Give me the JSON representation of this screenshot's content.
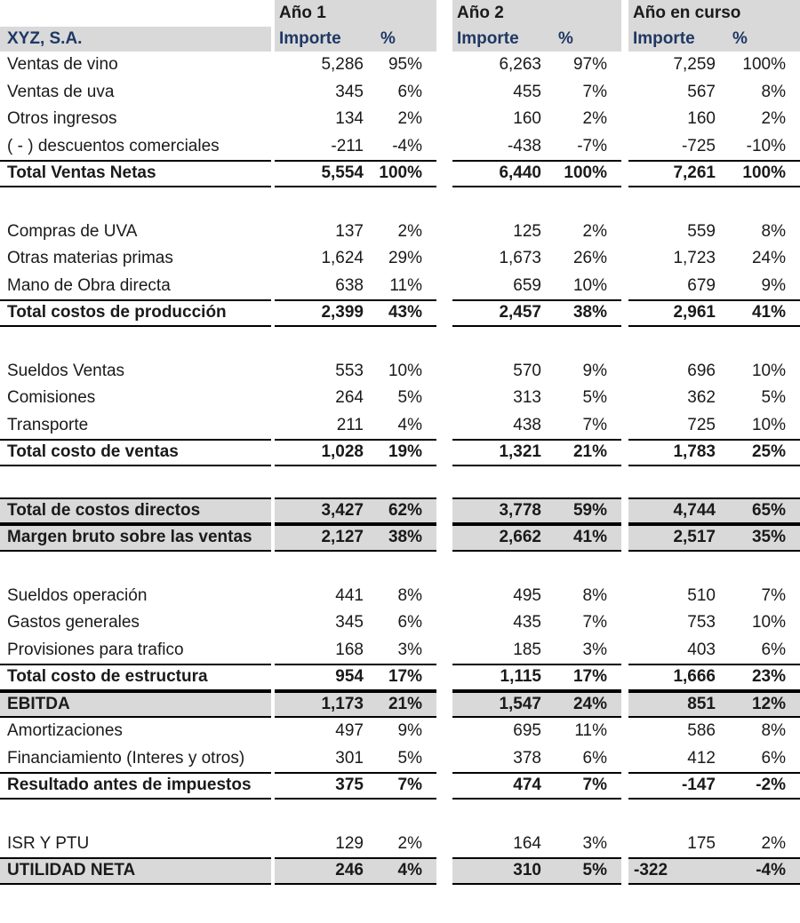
{
  "header": {
    "company": "XYZ, S.A.",
    "col_groups": [
      {
        "title": "Año 1"
      },
      {
        "title": "Año 2"
      },
      {
        "title": "Año en curso"
      }
    ],
    "importe": "Importe",
    "pct": "%"
  },
  "colors": {
    "header_text": "#1F3864",
    "band_bg": "#D9D9D9",
    "border": "#000000",
    "body_text": "#1A1A1A"
  },
  "rows": [
    {
      "style": "normal",
      "label": "Ventas de vino",
      "a1": "5,286",
      "a1p": "95%",
      "a2": "6,263",
      "a2p": "97%",
      "ac": "7,259",
      "acp": "100%"
    },
    {
      "style": "normal",
      "label": "Ventas de uva",
      "a1": "345",
      "a1p": "6%",
      "a2": "455",
      "a2p": "7%",
      "ac": "567",
      "acp": "8%"
    },
    {
      "style": "normal",
      "label": "Otros ingresos",
      "a1": "134",
      "a1p": "2%",
      "a2": "160",
      "a2p": "2%",
      "ac": "160",
      "acp": "2%"
    },
    {
      "style": "normal",
      "label": "( - ) descuentos comerciales",
      "a1": "-211",
      "a1p": "-4%",
      "a2": "-438",
      "a2p": "-7%",
      "ac": "-725",
      "acp": "-10%"
    },
    {
      "style": "total",
      "label": "Total Ventas Netas",
      "a1": "5,554",
      "a1p": "100%",
      "a2": "6,440",
      "a2p": "100%",
      "ac": "7,261",
      "acp": "100%"
    },
    {
      "style": "blank"
    },
    {
      "style": "normal",
      "label": "Compras de UVA",
      "a1": "137",
      "a1p": "2%",
      "a2": "125",
      "a2p": "2%",
      "ac": "559",
      "acp": "8%"
    },
    {
      "style": "normal",
      "label": "Otras materias primas",
      "a1": "1,624",
      "a1p": "29%",
      "a2": "1,673",
      "a2p": "26%",
      "ac": "1,723",
      "acp": "24%"
    },
    {
      "style": "normal",
      "label": "Mano de Obra directa",
      "a1": "638",
      "a1p": "11%",
      "a2": "659",
      "a2p": "10%",
      "ac": "679",
      "acp": "9%"
    },
    {
      "style": "total",
      "label": "Total costos de producción",
      "a1": "2,399",
      "a1p": "43%",
      "a2": "2,457",
      "a2p": "38%",
      "ac": "2,961",
      "acp": "41%"
    },
    {
      "style": "blank"
    },
    {
      "style": "normal",
      "label": "Sueldos Ventas",
      "a1": "553",
      "a1p": "10%",
      "a2": "570",
      "a2p": "9%",
      "ac": "696",
      "acp": "10%"
    },
    {
      "style": "normal",
      "label": "Comisiones",
      "a1": "264",
      "a1p": "5%",
      "a2": "313",
      "a2p": "5%",
      "ac": "362",
      "acp": "5%"
    },
    {
      "style": "normal",
      "label": "Transporte",
      "a1": "211",
      "a1p": "4%",
      "a2": "438",
      "a2p": "7%",
      "ac": "725",
      "acp": "10%"
    },
    {
      "style": "total",
      "label": "Total costo de ventas",
      "a1": "1,028",
      "a1p": "19%",
      "a2": "1,321",
      "a2p": "21%",
      "ac": "1,783",
      "acp": "25%"
    },
    {
      "style": "blank"
    },
    {
      "style": "gray",
      "label": "Total de costos directos",
      "a1": "3,427",
      "a1p": "62%",
      "a2": "3,778",
      "a2p": "59%",
      "ac": "4,744",
      "acp": "65%"
    },
    {
      "style": "gray",
      "label": "Margen bruto sobre las ventas",
      "a1": "2,127",
      "a1p": "38%",
      "a2": "2,662",
      "a2p": "41%",
      "ac": "2,517",
      "acp": "35%"
    },
    {
      "style": "blank"
    },
    {
      "style": "normal",
      "label": "Sueldos operación",
      "a1": "441",
      "a1p": "8%",
      "a2": "495",
      "a2p": "8%",
      "ac": "510",
      "acp": "7%"
    },
    {
      "style": "normal",
      "label": "Gastos generales",
      "a1": "345",
      "a1p": "6%",
      "a2": "435",
      "a2p": "7%",
      "ac": "753",
      "acp": "10%"
    },
    {
      "style": "normal",
      "label": "Provisiones para trafico",
      "a1": "168",
      "a1p": "3%",
      "a2": "185",
      "a2p": "3%",
      "ac": "403",
      "acp": "6%"
    },
    {
      "style": "total",
      "label": "Total costo de estructura",
      "a1": "954",
      "a1p": "17%",
      "a2": "1,115",
      "a2p": "17%",
      "ac": "1,666",
      "acp": "23%"
    },
    {
      "style": "gray",
      "label": "EBITDA",
      "a1": "1,173",
      "a1p": "21%",
      "a2": "1,547",
      "a2p": "24%",
      "ac": "851",
      "acp": "12%"
    },
    {
      "style": "normal",
      "label": "Amortizaciones",
      "a1": "497",
      "a1p": "9%",
      "a2": "695",
      "a2p": "11%",
      "ac": "586",
      "acp": "8%"
    },
    {
      "style": "normal",
      "label": "Financiamiento (Interes y otros)",
      "a1": "301",
      "a1p": "5%",
      "a2": "378",
      "a2p": "6%",
      "ac": "412",
      "acp": "6%"
    },
    {
      "style": "total",
      "label": "Resultado antes de impuestos",
      "a1": "375",
      "a1p": "7%",
      "a2": "474",
      "a2p": "7%",
      "ac": "-147",
      "acp": "-2%"
    },
    {
      "style": "blank"
    },
    {
      "style": "normal",
      "label": "ISR Y PTU",
      "a1": "129",
      "a1p": "2%",
      "a2": "164",
      "a2p": "3%",
      "ac": "175",
      "acp": "2%"
    },
    {
      "style": "gray",
      "label": "UTILIDAD NETA",
      "a1": "246",
      "a1p": "4%",
      "a2": "310",
      "a2p": "5%",
      "ac": "-322",
      "acp": "-4%",
      "ac_left": true
    }
  ]
}
